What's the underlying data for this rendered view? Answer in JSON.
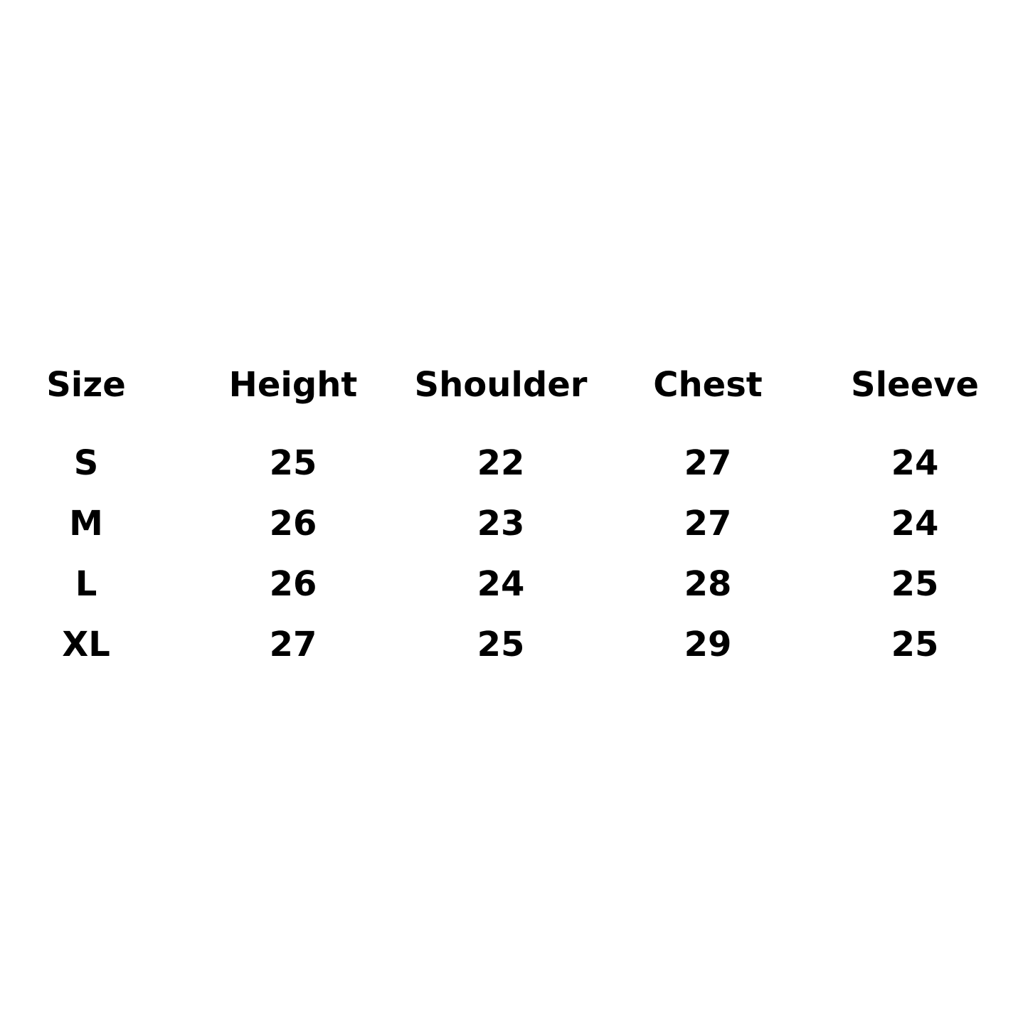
{
  "table": {
    "header": [
      "Size",
      "Height",
      "Shoulder",
      "Chest",
      "Sleeve"
    ],
    "rows": [
      [
        "S",
        25,
        22,
        27,
        24
      ],
      [
        "M",
        26,
        23,
        27,
        24
      ],
      [
        "L",
        26,
        24,
        28,
        25
      ],
      [
        "XL",
        27,
        25,
        29,
        25
      ]
    ]
  }
}
